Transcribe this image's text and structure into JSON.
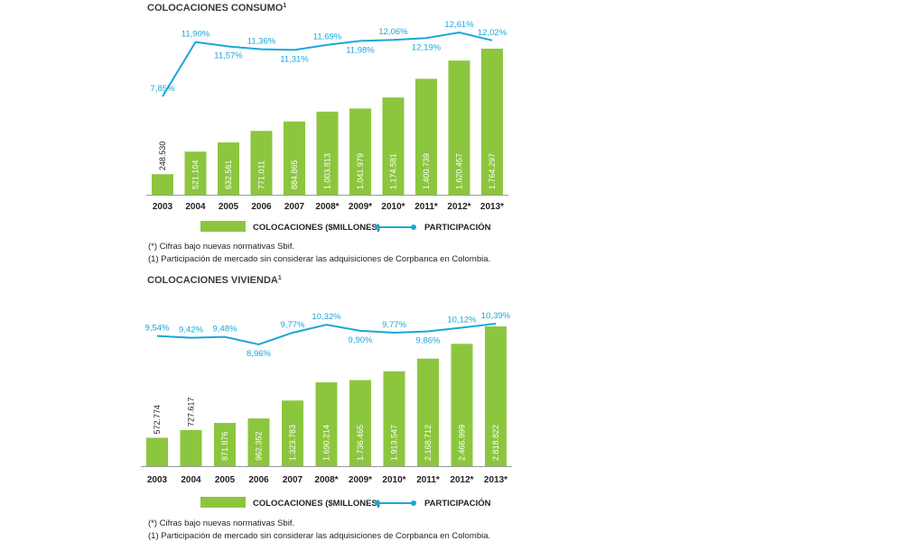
{
  "chart_data": [
    {
      "type": "bar",
      "title": "COLOCACIONES CONSUMO",
      "title_sup": "1",
      "categories": [
        "2003",
        "2004",
        "2005",
        "2006",
        "2007",
        "2008*",
        "2009*",
        "2010*",
        "2011*",
        "2012*",
        "2013*"
      ],
      "series": [
        {
          "name": "COLOCACIONES ($MILLONES)",
          "type": "bar",
          "color": "#8cc63e",
          "values": [
            248530,
            521104,
            632561,
            771011,
            884865,
            1003813,
            1041979,
            1174581,
            1400739,
            1620457,
            1764297
          ],
          "labels": [
            "248.530",
            "521.104",
            "632.561",
            "771.011",
            "884.865",
            "1.003.813",
            "1.041.979",
            "1.174.581",
            "1.400.739",
            "1.620.457",
            "1.764.297"
          ]
        },
        {
          "name": "PARTICIPACIÓN",
          "type": "line",
          "color": "#1aa7d9",
          "values": [
            7.85,
            11.9,
            11.57,
            11.36,
            11.31,
            11.69,
            11.98,
            12.06,
            12.19,
            12.61,
            12.02
          ],
          "labels": [
            "7,85%",
            "11,90%",
            "11,57%",
            "11,36%",
            "11,31%",
            "11,69%",
            "11,98%",
            "12,06%",
            "12,19%",
            "12,61%",
            "12,02%"
          ]
        }
      ],
      "notes": [
        "(*)  Cifras bajo nuevas normativas Sbif.",
        "(1)  Participación de mercado sin considerar las adquisiciones de Corpbanca en Colombia."
      ]
    },
    {
      "type": "bar",
      "title": "COLOCACIONES VIVIENDA",
      "title_sup": "1",
      "categories": [
        "2003",
        "2004",
        "2005",
        "2006",
        "2007",
        "2008*",
        "2009*",
        "2010*",
        "2011*",
        "2012*",
        "2013*"
      ],
      "series": [
        {
          "name": "COLOCACIONES ($MILLONES)",
          "type": "bar",
          "color": "#8cc63e",
          "values": [
            572774,
            727617,
            871876,
            962352,
            1323783,
            1690214,
            1736465,
            1913547,
            2168712,
            2466999,
            2818822
          ],
          "labels": [
            "572.774",
            "727.617",
            "871.876",
            "962.352",
            "1.323.783",
            "1.690.214",
            "1.736.465",
            "1.913.547",
            "2.168.712",
            "2.466.999",
            "2.818.822"
          ]
        },
        {
          "name": "PARTICIPACIÓN",
          "type": "line",
          "color": "#1aa7d9",
          "values": [
            9.54,
            9.42,
            9.48,
            8.96,
            9.77,
            10.32,
            9.9,
            9.77,
            9.86,
            10.12,
            10.39
          ],
          "labels": [
            "9,54%",
            "9,42%",
            "9,48%",
            "8,96%",
            "9,77%",
            "10,32%",
            "9,90%",
            "9,77%",
            "9,86%",
            "10,12%",
            "10,39%"
          ]
        }
      ],
      "notes": [
        "(*)  Cifras bajo nuevas normativas Sbif.",
        "(1)  Participación de mercado sin considerar las adquisiciones de Corpbanca en Colombia."
      ]
    }
  ]
}
